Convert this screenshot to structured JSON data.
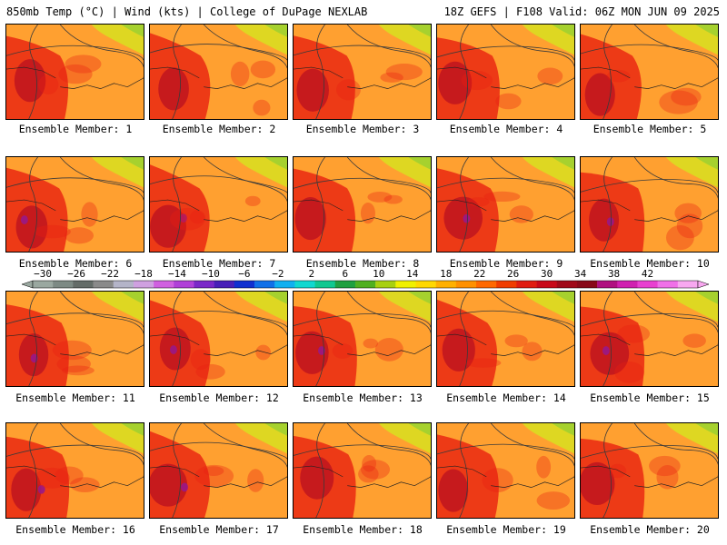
{
  "header": {
    "left": "850mb Temp (°C) | Wind (kts) | College of DuPage NEXLAB",
    "right": "18Z GEFS | F108 Valid: 06Z MON JUN 09 2025"
  },
  "members": [
    {
      "label": "Ensemble Member: 1"
    },
    {
      "label": "Ensemble Member: 2"
    },
    {
      "label": "Ensemble Member: 3"
    },
    {
      "label": "Ensemble Member: 4"
    },
    {
      "label": "Ensemble Member: 5"
    },
    {
      "label": "Ensemble Member: 6"
    },
    {
      "label": "Ensemble Member: 7"
    },
    {
      "label": "Ensemble Member: 8"
    },
    {
      "label": "Ensemble Member: 9"
    },
    {
      "label": "Ensemble Member: 10"
    },
    {
      "label": "Ensemble Member: 11"
    },
    {
      "label": "Ensemble Member: 12"
    },
    {
      "label": "Ensemble Member: 13"
    },
    {
      "label": "Ensemble Member: 14"
    },
    {
      "label": "Ensemble Member: 15"
    },
    {
      "label": "Ensemble Member: 16"
    },
    {
      "label": "Ensemble Member: 17"
    },
    {
      "label": "Ensemble Member: 18"
    },
    {
      "label": "Ensemble Member: 19"
    },
    {
      "label": "Ensemble Member: 20"
    }
  ],
  "colorbar": {
    "labels": [
      "-30",
      "-26",
      "-22",
      "-18",
      "-14",
      "-10",
      "-6",
      "-2",
      "2",
      "6",
      "10",
      "14",
      "18",
      "22",
      "26",
      "30",
      "34",
      "38",
      "42"
    ],
    "colors": [
      "#9aa8a0",
      "#7d8a84",
      "#646c68",
      "#8a8a8a",
      "#b4b4c8",
      "#cfa0e0",
      "#d060e0",
      "#b040d8",
      "#7a28c8",
      "#4820b8",
      "#1030d0",
      "#1070e8",
      "#10b0f0",
      "#10d8d0",
      "#10c890",
      "#20a040",
      "#50b020",
      "#a8d010",
      "#f0f000",
      "#ffd800",
      "#ffb000",
      "#ff9000",
      "#ff6800",
      "#f03c00",
      "#e01c10",
      "#c80818",
      "#a00818",
      "#880818",
      "#b01080",
      "#d020b0",
      "#e840d0",
      "#f070e8",
      "#f8a8f0"
    ]
  },
  "map_style": {
    "base_color": "#ffa030",
    "warm_color": "#e82010",
    "hot_color": "#b81020",
    "extreme_color": "#981888",
    "cool_color": "#d8e020",
    "cold_color": "#a0d030",
    "contour_color": "#3a3a3a"
  }
}
